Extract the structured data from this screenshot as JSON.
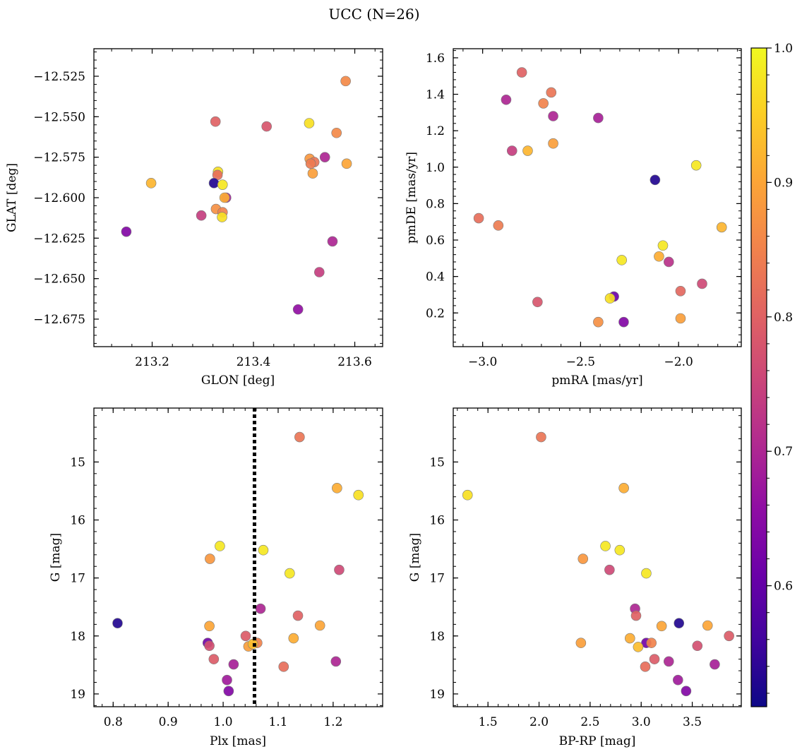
{
  "figure": {
    "title": "UCC (N=26)"
  },
  "colorbar": {
    "range": [
      0.51,
      1.0
    ],
    "ticks": [
      0.6,
      0.7,
      0.8,
      0.9,
      1.0
    ],
    "tick_labels": [
      "0.6",
      "0.7",
      "0.8",
      "0.9",
      "1.0"
    ],
    "colormap": "plasma"
  },
  "chart_data": [
    {
      "type": "scatter",
      "id": "glon-glat",
      "xlabel": "GLON [deg]",
      "ylabel": "GLAT [deg]",
      "xlim": [
        213.085,
        213.655
      ],
      "ylim": [
        -12.692,
        -12.508
      ],
      "invert_y": false,
      "xticks": [
        213.2,
        213.4,
        213.6
      ],
      "xtick_labels": [
        "213.2",
        "213.4",
        "213.6"
      ],
      "yticks": [
        -12.525,
        -12.55,
        -12.575,
        -12.6,
        -12.625,
        -12.65,
        -12.675
      ],
      "ytick_labels": [
        "−12.525",
        "−12.550",
        "−12.575",
        "−12.600",
        "−12.625",
        "−12.650",
        "−12.675"
      ],
      "points": [
        {
          "x": 213.582,
          "y": -12.528,
          "c": 0.86
        },
        {
          "x": 213.325,
          "y": -12.553,
          "c": 0.8
        },
        {
          "x": 213.426,
          "y": -12.556,
          "c": 0.78
        },
        {
          "x": 213.51,
          "y": -12.554,
          "c": 0.97
        },
        {
          "x": 213.564,
          "y": -12.56,
          "c": 0.86
        },
        {
          "x": 213.511,
          "y": -12.576,
          "c": 0.88
        },
        {
          "x": 213.52,
          "y": -12.578,
          "c": 0.83
        },
        {
          "x": 213.541,
          "y": -12.575,
          "c": 0.7
        },
        {
          "x": 213.513,
          "y": -12.579,
          "c": 0.84
        },
        {
          "x": 213.584,
          "y": -12.579,
          "c": 0.9
        },
        {
          "x": 213.517,
          "y": -12.585,
          "c": 0.89
        },
        {
          "x": 213.33,
          "y": -12.584,
          "c": 0.97
        },
        {
          "x": 213.329,
          "y": -12.586,
          "c": 0.82
        },
        {
          "x": 213.198,
          "y": -12.591,
          "c": 0.92
        },
        {
          "x": 213.322,
          "y": -12.591,
          "c": 0.53
        },
        {
          "x": 213.339,
          "y": -12.592,
          "c": 0.98
        },
        {
          "x": 213.346,
          "y": -12.6,
          "c": 0.69
        },
        {
          "x": 213.343,
          "y": -12.6,
          "c": 0.91
        },
        {
          "x": 213.326,
          "y": -12.607,
          "c": 0.87
        },
        {
          "x": 213.339,
          "y": -12.609,
          "c": 0.85
        },
        {
          "x": 213.297,
          "y": -12.611,
          "c": 0.74
        },
        {
          "x": 213.338,
          "y": -12.612,
          "c": 0.97
        },
        {
          "x": 213.149,
          "y": -12.621,
          "c": 0.64
        },
        {
          "x": 213.556,
          "y": -12.627,
          "c": 0.7
        },
        {
          "x": 213.53,
          "y": -12.646,
          "c": 0.74
        },
        {
          "x": 213.488,
          "y": -12.669,
          "c": 0.66
        }
      ]
    },
    {
      "type": "scatter",
      "id": "pmra-pmde",
      "xlabel": "pmRA [mas/yr]",
      "ylabel": "pmDE [mas/yr]",
      "xlim": [
        -3.15,
        -1.68
      ],
      "ylim": [
        0.015,
        1.65
      ],
      "invert_y": false,
      "xticks": [
        -3.0,
        -2.5,
        -2.0
      ],
      "xtick_labels": [
        "−3.0",
        "−2.5",
        "−2.0"
      ],
      "yticks": [
        0.2,
        0.4,
        0.6,
        0.8,
        1.0,
        1.2,
        1.4,
        1.6
      ],
      "ytick_labels": [
        "0.2",
        "0.4",
        "0.6",
        "0.8",
        "1.0",
        "1.2",
        "1.4",
        "1.6"
      ],
      "points": [
        {
          "x": -2.8,
          "y": 1.52,
          "c": 0.8
        },
        {
          "x": -2.65,
          "y": 1.41,
          "c": 0.83
        },
        {
          "x": -2.88,
          "y": 1.37,
          "c": 0.7
        },
        {
          "x": -2.69,
          "y": 1.35,
          "c": 0.85
        },
        {
          "x": -2.64,
          "y": 1.28,
          "c": 0.7
        },
        {
          "x": -2.41,
          "y": 1.27,
          "c": 0.69
        },
        {
          "x": -2.64,
          "y": 1.13,
          "c": 0.89
        },
        {
          "x": -2.85,
          "y": 1.09,
          "c": 0.74
        },
        {
          "x": -2.77,
          "y": 1.09,
          "c": 0.92
        },
        {
          "x": -1.91,
          "y": 1.01,
          "c": 0.98
        },
        {
          "x": -2.12,
          "y": 0.93,
          "c": 0.53
        },
        {
          "x": -3.02,
          "y": 0.72,
          "c": 0.82
        },
        {
          "x": -2.92,
          "y": 0.68,
          "c": 0.84
        },
        {
          "x": -1.78,
          "y": 0.67,
          "c": 0.92
        },
        {
          "x": -2.08,
          "y": 0.57,
          "c": 0.98
        },
        {
          "x": -2.1,
          "y": 0.51,
          "c": 0.91
        },
        {
          "x": -2.29,
          "y": 0.49,
          "c": 0.98
        },
        {
          "x": -2.05,
          "y": 0.48,
          "c": 0.72
        },
        {
          "x": -1.88,
          "y": 0.36,
          "c": 0.76
        },
        {
          "x": -1.99,
          "y": 0.32,
          "c": 0.81
        },
        {
          "x": -2.33,
          "y": 0.29,
          "c": 0.61
        },
        {
          "x": -2.35,
          "y": 0.28,
          "c": 0.97
        },
        {
          "x": -2.72,
          "y": 0.26,
          "c": 0.78
        },
        {
          "x": -1.99,
          "y": 0.17,
          "c": 0.89
        },
        {
          "x": -2.41,
          "y": 0.15,
          "c": 0.87
        },
        {
          "x": -2.28,
          "y": 0.15,
          "c": 0.64
        }
      ]
    },
    {
      "type": "scatter",
      "id": "plx-g",
      "xlabel": "Plx [mas]",
      "ylabel": "G [mag]",
      "xlim": [
        0.765,
        1.29
      ],
      "ylim": [
        19.22,
        14.07
      ],
      "invert_y": true,
      "xticks": [
        0.8,
        0.9,
        1.0,
        1.1,
        1.2
      ],
      "xtick_labels": [
        "0.8",
        "0.9",
        "1.0",
        "1.1",
        "1.2"
      ],
      "yticks": [
        15,
        16,
        17,
        18,
        19
      ],
      "ytick_labels": [
        "15",
        "16",
        "17",
        "18",
        "19"
      ],
      "vline": {
        "x": 1.057,
        "style": "dotted"
      },
      "points": [
        {
          "x": 1.139,
          "y": 14.57,
          "c": 0.83
        },
        {
          "x": 1.207,
          "y": 15.45,
          "c": 0.91
        },
        {
          "x": 1.246,
          "y": 15.57,
          "c": 0.97
        },
        {
          "x": 0.994,
          "y": 16.45,
          "c": 0.98
        },
        {
          "x": 1.073,
          "y": 16.52,
          "c": 0.98
        },
        {
          "x": 0.976,
          "y": 16.67,
          "c": 0.88
        },
        {
          "x": 1.211,
          "y": 16.86,
          "c": 0.76
        },
        {
          "x": 1.121,
          "y": 16.92,
          "c": 0.98
        },
        {
          "x": 1.068,
          "y": 17.53,
          "c": 0.7
        },
        {
          "x": 1.136,
          "y": 17.65,
          "c": 0.8
        },
        {
          "x": 0.808,
          "y": 17.78,
          "c": 0.53
        },
        {
          "x": 0.975,
          "y": 17.83,
          "c": 0.9
        },
        {
          "x": 1.176,
          "y": 17.82,
          "c": 0.9
        },
        {
          "x": 1.041,
          "y": 18.0,
          "c": 0.79
        },
        {
          "x": 1.128,
          "y": 18.04,
          "c": 0.91
        },
        {
          "x": 0.972,
          "y": 18.12,
          "c": 0.62
        },
        {
          "x": 1.062,
          "y": 18.12,
          "c": 0.85
        },
        {
          "x": 0.975,
          "y": 18.17,
          "c": 0.77
        },
        {
          "x": 1.046,
          "y": 18.18,
          "c": 0.89
        },
        {
          "x": 1.054,
          "y": 18.14,
          "c": 0.93
        },
        {
          "x": 0.983,
          "y": 18.4,
          "c": 0.79
        },
        {
          "x": 1.205,
          "y": 18.44,
          "c": 0.7
        },
        {
          "x": 1.019,
          "y": 18.49,
          "c": 0.69
        },
        {
          "x": 1.11,
          "y": 18.53,
          "c": 0.82
        },
        {
          "x": 1.007,
          "y": 18.76,
          "c": 0.68
        },
        {
          "x": 1.01,
          "y": 18.95,
          "c": 0.64
        }
      ]
    },
    {
      "type": "scatter",
      "id": "bprp-g",
      "xlabel": "BP-RP [mag]",
      "ylabel": "G [mag]",
      "xlim": [
        1.16,
        3.98
      ],
      "ylim": [
        19.22,
        14.07
      ],
      "invert_y": true,
      "xticks": [
        1.5,
        2.0,
        2.5,
        3.0,
        3.5
      ],
      "xtick_labels": [
        "1.5",
        "2.0",
        "2.5",
        "3.0",
        "3.5"
      ],
      "yticks": [
        15,
        16,
        17,
        18,
        19
      ],
      "ytick_labels": [
        "15",
        "16",
        "17",
        "18",
        "19"
      ],
      "points": [
        {
          "x": 2.02,
          "y": 14.57,
          "c": 0.83
        },
        {
          "x": 2.83,
          "y": 15.45,
          "c": 0.91
        },
        {
          "x": 1.3,
          "y": 15.57,
          "c": 0.97
        },
        {
          "x": 2.65,
          "y": 16.45,
          "c": 0.98
        },
        {
          "x": 2.79,
          "y": 16.52,
          "c": 0.98
        },
        {
          "x": 2.43,
          "y": 16.67,
          "c": 0.88
        },
        {
          "x": 2.69,
          "y": 16.86,
          "c": 0.76
        },
        {
          "x": 3.05,
          "y": 16.92,
          "c": 0.98
        },
        {
          "x": 2.94,
          "y": 17.53,
          "c": 0.7
        },
        {
          "x": 2.95,
          "y": 17.65,
          "c": 0.8
        },
        {
          "x": 3.37,
          "y": 17.78,
          "c": 0.53
        },
        {
          "x": 3.2,
          "y": 17.83,
          "c": 0.9
        },
        {
          "x": 3.65,
          "y": 17.82,
          "c": 0.9
        },
        {
          "x": 3.86,
          "y": 18.0,
          "c": 0.79
        },
        {
          "x": 2.89,
          "y": 18.04,
          "c": 0.91
        },
        {
          "x": 3.05,
          "y": 18.12,
          "c": 0.62
        },
        {
          "x": 3.1,
          "y": 18.12,
          "c": 0.85
        },
        {
          "x": 3.55,
          "y": 18.17,
          "c": 0.77
        },
        {
          "x": 2.41,
          "y": 18.12,
          "c": 0.89
        },
        {
          "x": 2.97,
          "y": 18.19,
          "c": 0.93
        },
        {
          "x": 3.13,
          "y": 18.4,
          "c": 0.79
        },
        {
          "x": 3.27,
          "y": 18.44,
          "c": 0.7
        },
        {
          "x": 3.72,
          "y": 18.49,
          "c": 0.69
        },
        {
          "x": 3.04,
          "y": 18.53,
          "c": 0.82
        },
        {
          "x": 3.36,
          "y": 18.76,
          "c": 0.68
        },
        {
          "x": 3.44,
          "y": 18.95,
          "c": 0.64
        }
      ]
    }
  ]
}
